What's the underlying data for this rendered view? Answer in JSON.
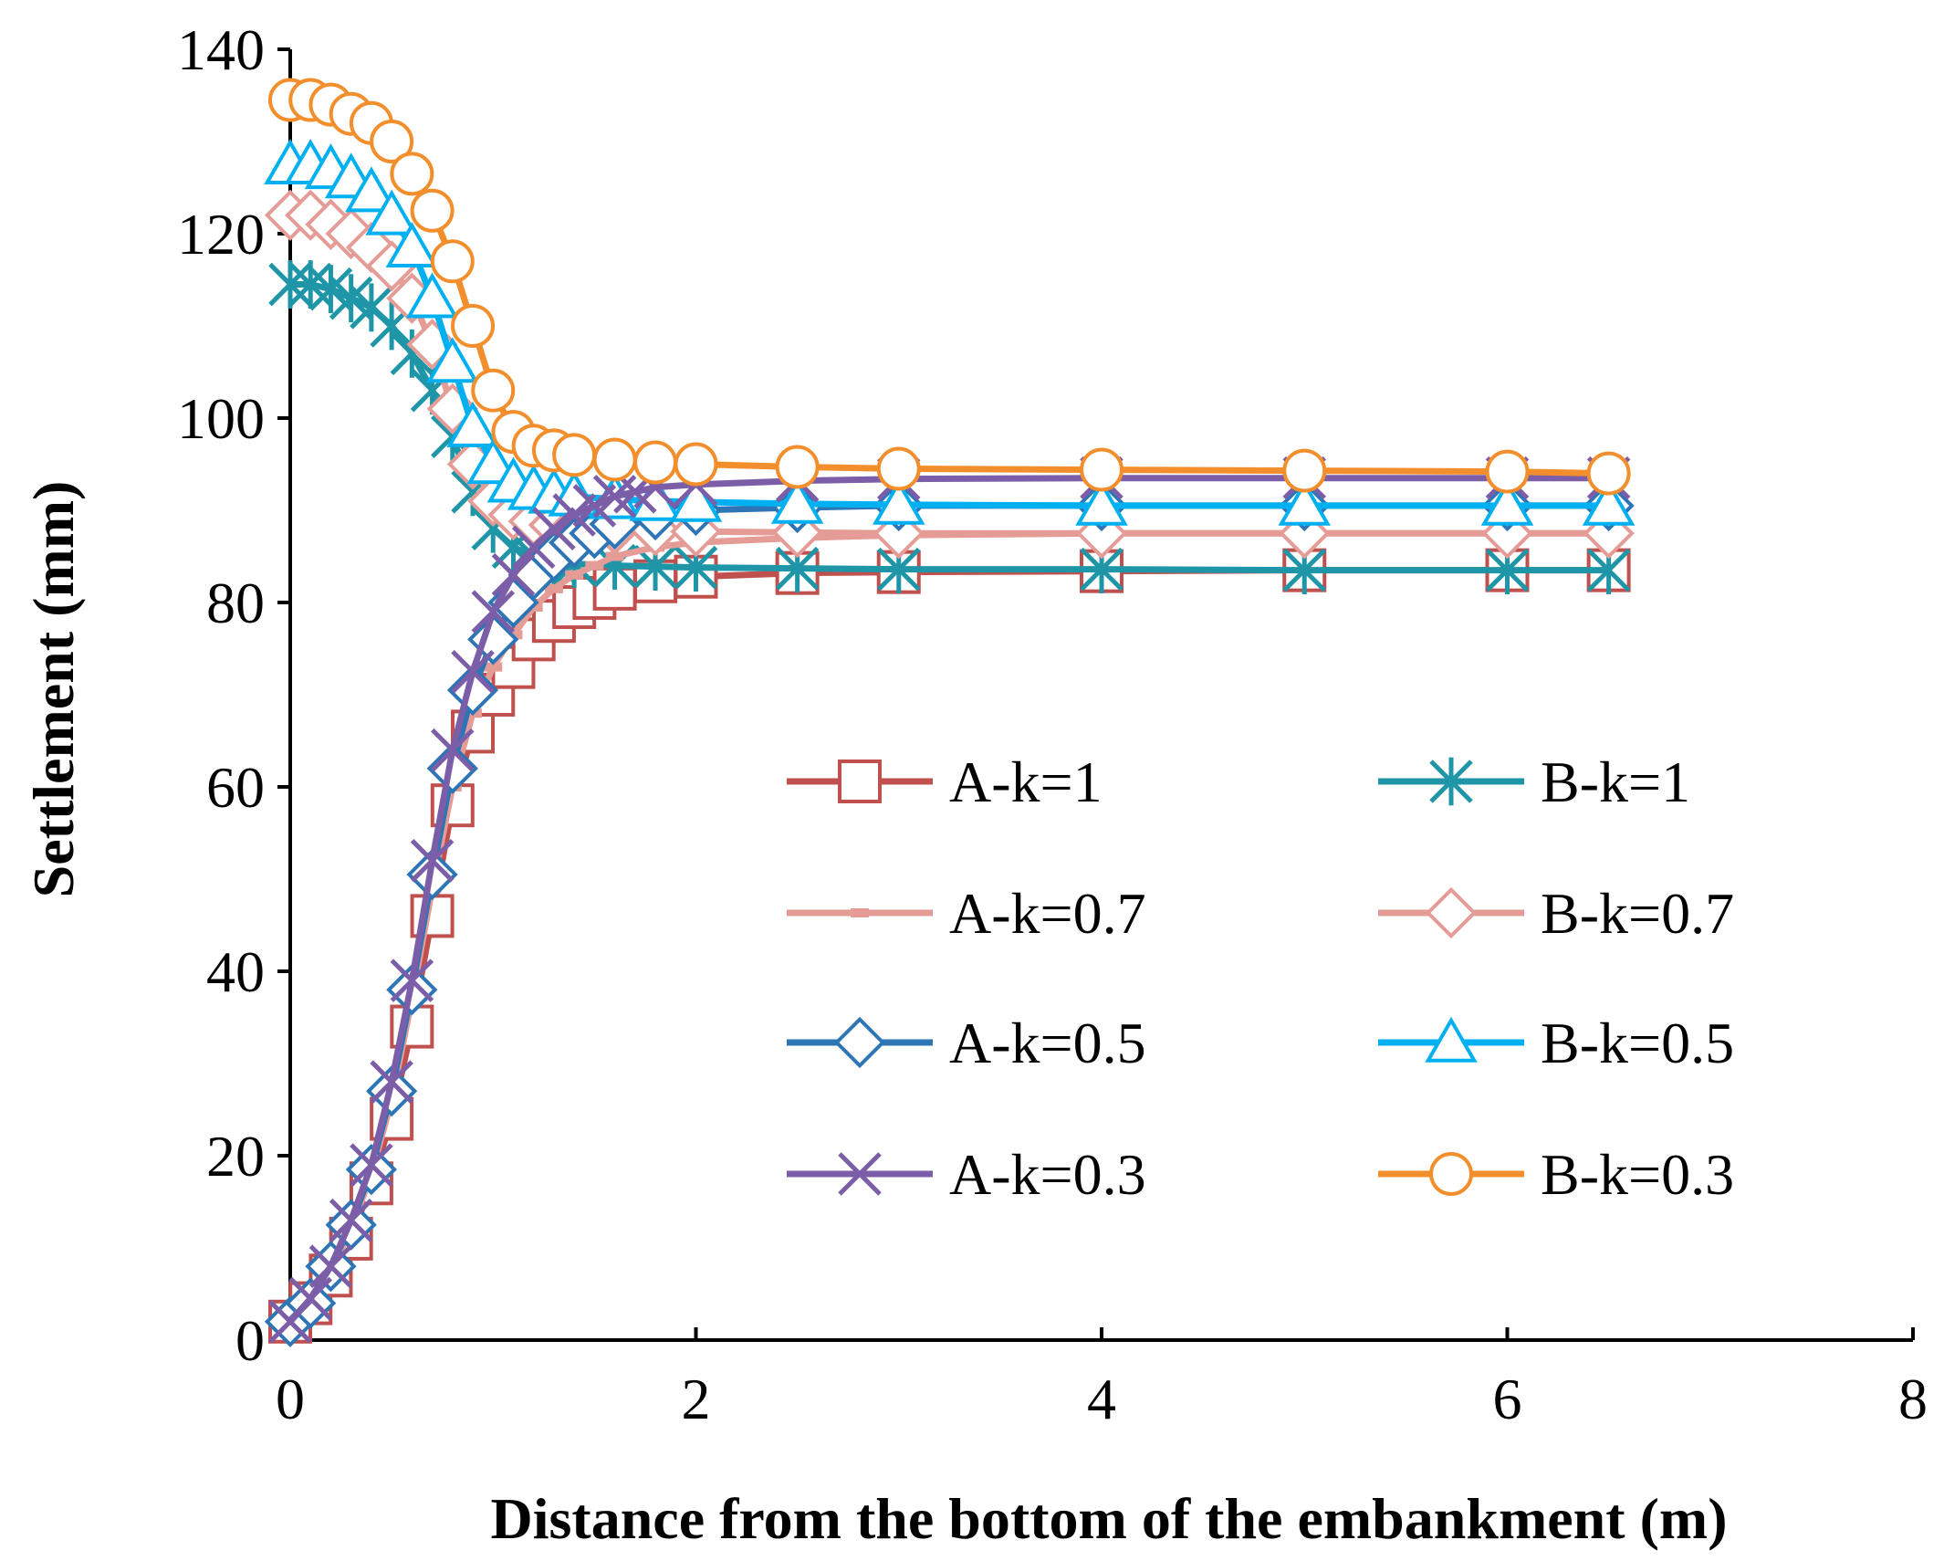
{
  "chart_data": {
    "type": "line",
    "title": "",
    "xlabel": "Distance from the bottom of the embankment (m)",
    "ylabel": "Settlement (mm)",
    "xlim": [
      0,
      8
    ],
    "ylim": [
      0,
      140
    ],
    "xticks": [
      0,
      2,
      4,
      6,
      8
    ],
    "yticks": [
      0,
      20,
      40,
      60,
      80,
      100,
      120,
      140
    ],
    "grid": false,
    "legend_placement": "center-right, two columns",
    "series": [
      {
        "name": "A-k=1",
        "color": "#C0504D",
        "marker": "square",
        "x": [
          0,
          0.1,
          0.2,
          0.3,
          0.4,
          0.5,
          0.6,
          0.7,
          0.8,
          0.9,
          1.0,
          1.1,
          1.2,
          1.3,
          1.4,
          1.5,
          1.6,
          1.8,
          2.0,
          2.5,
          3.0,
          4.0,
          5.0,
          6.0,
          6.5
        ],
        "y": [
          2,
          4,
          7,
          11,
          17,
          24,
          34,
          46,
          58,
          66,
          70,
          73,
          76,
          78,
          79.5,
          80.5,
          81.5,
          82.3,
          82.8,
          83.2,
          83.3,
          83.4,
          83.5,
          83.5,
          83.5
        ]
      },
      {
        "name": "B-k=1",
        "color": "#1F96A8",
        "marker": "asterisk",
        "x": [
          0,
          0.1,
          0.2,
          0.3,
          0.4,
          0.5,
          0.6,
          0.7,
          0.8,
          0.9,
          1.0,
          1.1,
          1.2,
          1.3,
          1.4,
          1.6,
          1.8,
          2.0,
          2.5,
          3.0,
          4.0,
          5.0,
          6.0,
          6.5
        ],
        "y": [
          114.5,
          114.5,
          114,
          113,
          112,
          110,
          107,
          103,
          98,
          92,
          88,
          86,
          85,
          84.5,
          84.2,
          84,
          83.9,
          83.8,
          83.7,
          83.6,
          83.6,
          83.5,
          83.5,
          83.5
        ]
      },
      {
        "name": "A-k=0.7",
        "color": "#E59C97",
        "marker": "dash",
        "x": [
          0,
          0.1,
          0.2,
          0.3,
          0.4,
          0.5,
          0.6,
          0.7,
          0.8,
          0.9,
          1.0,
          1.1,
          1.2,
          1.3,
          1.4,
          1.5,
          1.6,
          1.8,
          2.0,
          2.5,
          3.0,
          4.0,
          5.0,
          6.0,
          6.5
        ],
        "y": [
          2,
          4,
          7.5,
          12,
          18,
          26,
          37,
          49,
          60,
          68,
          73,
          76.5,
          79.5,
          81.5,
          83,
          84,
          85,
          86,
          86.5,
          87,
          87.3,
          87.5,
          87.5,
          87.5,
          87.5
        ]
      },
      {
        "name": "B-k=0.7",
        "color": "#E59C97",
        "marker": "diamond",
        "x": [
          0,
          0.1,
          0.2,
          0.3,
          0.4,
          0.5,
          0.6,
          0.7,
          0.8,
          0.9,
          1.0,
          1.1,
          1.2,
          1.3,
          1.4,
          1.6,
          1.8,
          2.0,
          2.5,
          3.0,
          4.0,
          5.0,
          6.0,
          6.5
        ],
        "y": [
          122,
          122,
          121,
          120,
          118.5,
          116.5,
          113,
          108,
          101,
          95,
          91,
          89.5,
          88.8,
          88.4,
          88.1,
          87.9,
          87.8,
          87.7,
          87.6,
          87.5,
          87.5,
          87.5,
          87.5,
          87.5
        ]
      },
      {
        "name": "A-k=0.5",
        "color": "#2E75B6",
        "marker": "diamond",
        "x": [
          0,
          0.1,
          0.2,
          0.3,
          0.4,
          0.5,
          0.6,
          0.7,
          0.8,
          0.9,
          1.0,
          1.1,
          1.2,
          1.3,
          1.4,
          1.5,
          1.6,
          1.8,
          2.0,
          2.5,
          3.0,
          4.0,
          5.0,
          6.0,
          6.5
        ],
        "y": [
          2,
          4,
          8,
          12.5,
          18.5,
          27,
          38,
          50.5,
          62,
          70.5,
          76,
          80,
          83,
          85,
          86.5,
          87.5,
          88.5,
          89.5,
          90,
          90.3,
          90.5,
          90.5,
          90.5,
          90.5,
          90.5
        ]
      },
      {
        "name": "B-k=0.5",
        "color": "#00B0F0",
        "marker": "triangle",
        "x": [
          0,
          0.1,
          0.2,
          0.3,
          0.4,
          0.5,
          0.6,
          0.7,
          0.8,
          0.9,
          1.0,
          1.1,
          1.2,
          1.3,
          1.4,
          1.6,
          1.8,
          2.0,
          2.5,
          3.0,
          4.0,
          5.0,
          6.0,
          6.5
        ],
        "y": [
          127.5,
          127.5,
          127,
          126,
          124.5,
          122,
          118.5,
          113,
          106,
          99,
          95,
          93,
          92.2,
          91.8,
          91.5,
          91.2,
          91,
          90.9,
          90.7,
          90.6,
          90.5,
          90.5,
          90.5,
          90.5
        ]
      },
      {
        "name": "A-k=0.3",
        "color": "#7B5EA7",
        "marker": "x",
        "x": [
          0,
          0.1,
          0.2,
          0.3,
          0.4,
          0.5,
          0.6,
          0.7,
          0.8,
          0.9,
          1.0,
          1.1,
          1.2,
          1.3,
          1.4,
          1.5,
          1.6,
          1.7,
          1.8,
          2.0,
          2.5,
          3.0,
          4.0,
          5.0,
          6.0,
          6.5
        ],
        "y": [
          2,
          4.5,
          8,
          13,
          19,
          28,
          39,
          52,
          64,
          72.5,
          79,
          83,
          86,
          88,
          89.5,
          90.5,
          91.5,
          92,
          92.5,
          92.8,
          93.2,
          93.4,
          93.5,
          93.5,
          93.5,
          93.5
        ]
      },
      {
        "name": "B-k=0.3",
        "color": "#F28E2B",
        "marker": "circle",
        "x": [
          0,
          0.1,
          0.2,
          0.3,
          0.4,
          0.5,
          0.6,
          0.7,
          0.8,
          0.9,
          1.0,
          1.1,
          1.2,
          1.3,
          1.4,
          1.6,
          1.8,
          2.0,
          2.5,
          3.0,
          4.0,
          5.0,
          6.0,
          6.5
        ],
        "y": [
          134.5,
          134.5,
          134,
          133,
          132,
          130,
          126.5,
          122.5,
          117,
          110,
          103,
          98.5,
          97,
          96.5,
          96,
          95.5,
          95.2,
          95,
          94.7,
          94.5,
          94.4,
          94.3,
          94.2,
          94
        ]
      }
    ]
  }
}
